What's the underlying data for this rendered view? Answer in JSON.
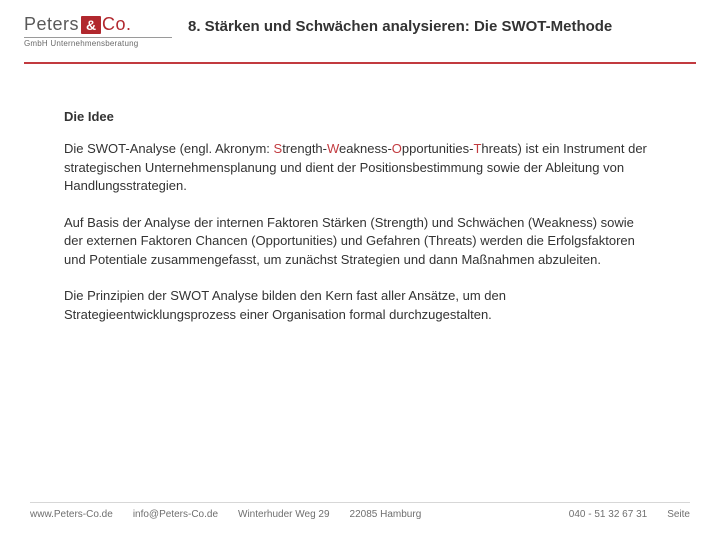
{
  "colors": {
    "accent": "#c23a3f",
    "logo_red": "#b1282e",
    "text": "#333333",
    "footer_text": "#6f6f6f",
    "divider": "#d7d7d7",
    "background": "#ffffff"
  },
  "typography": {
    "title_fontsize": 15,
    "body_fontsize": 13,
    "footer_fontsize": 10,
    "logo_name_fontsize": 18,
    "heading_weight": 700
  },
  "logo": {
    "name": "Peters",
    "amp": "&",
    "co": "Co.",
    "subline": "GmbH Unternehmensberatung"
  },
  "title": "8. Stärken und Schwächen analysieren: Die SWOT-Methode",
  "section_heading": "Die Idee",
  "para1_pre": "Die SWOT-Analyse (engl. Akronym: ",
  "para1_s": "S",
  "para1_s_after": "trength-",
  "para1_w": "W",
  "para1_w_after": "eakness-",
  "para1_o": "O",
  "para1_o_after": "pportunities-",
  "para1_t": "T",
  "para1_t_after": "hreats) ist ein Instrument der strategischen Unternehmensplanung und dient der Positions­bestimmung sowie der Ableitung von Handlungsstrategien.",
  "para2": "Auf Basis der Analyse der internen Faktoren Stärken (Strength) und Schwächen (Weakness) sowie der externen Faktoren Chancen (Opportunities) und Gefahren (Threats) werden die Erfolgsfaktoren und Potentiale zusammengefasst, um zunächst Strategien und dann Maßnahmen abzuleiten.",
  "para3": "Die Prinzipien der SWOT Analyse bilden den Kern fast aller Ansätze, um den Strategieentwicklungsprozess einer Organisation formal durchzugestalten.",
  "footer": {
    "website": "www.Peters-Co.de",
    "email": "info@Peters-Co.de",
    "street": "Winterhuder Weg 29",
    "city": "22085 Hamburg",
    "phone": "040  - 51 32 67 31",
    "page_label": "Seite"
  }
}
